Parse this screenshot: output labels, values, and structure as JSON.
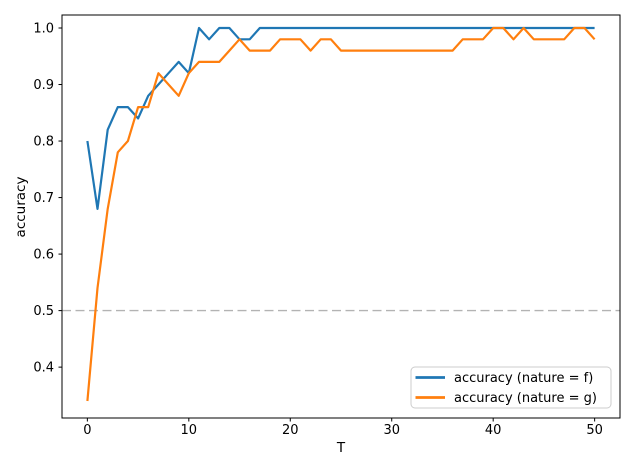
{
  "figure": {
    "background": "#ffffff",
    "spine_color": "#000000",
    "text_color": "#000000"
  },
  "chart_data": {
    "type": "line",
    "title": "",
    "xlabel": "T",
    "ylabel": "accuracy",
    "xlim": [
      -2.5,
      52.5
    ],
    "ylim": [
      0.31,
      1.023
    ],
    "x_ticks": [
      0,
      10,
      20,
      30,
      40,
      50
    ],
    "y_ticks": [
      0.4,
      0.5,
      0.6,
      0.7,
      0.8,
      0.9,
      1.0
    ],
    "grid": false,
    "legend_position": "lower right",
    "x": [
      0,
      1,
      2,
      3,
      4,
      5,
      6,
      7,
      8,
      9,
      10,
      11,
      12,
      13,
      14,
      15,
      16,
      17,
      18,
      19,
      20,
      21,
      22,
      23,
      24,
      25,
      26,
      27,
      28,
      29,
      30,
      31,
      32,
      33,
      34,
      35,
      36,
      37,
      38,
      39,
      40,
      41,
      42,
      43,
      44,
      45,
      46,
      47,
      48,
      49,
      50
    ],
    "series": [
      {
        "name": "accuracy (nature = f)",
        "color": "#1f77b4",
        "values": [
          0.8,
          0.68,
          0.82,
          0.86,
          0.86,
          0.84,
          0.88,
          0.9,
          0.92,
          0.94,
          0.92,
          1.0,
          0.98,
          1.0,
          1.0,
          0.98,
          0.98,
          1.0,
          1.0,
          1.0,
          1.0,
          1.0,
          1.0,
          1.0,
          1.0,
          1.0,
          1.0,
          1.0,
          1.0,
          1.0,
          1.0,
          1.0,
          1.0,
          1.0,
          1.0,
          1.0,
          1.0,
          1.0,
          1.0,
          1.0,
          1.0,
          1.0,
          1.0,
          1.0,
          1.0,
          1.0,
          1.0,
          1.0,
          1.0,
          1.0,
          1.0
        ]
      },
      {
        "name": "accuracy (nature = g)",
        "color": "#ff7f0e",
        "values": [
          0.34,
          0.54,
          0.68,
          0.78,
          0.8,
          0.86,
          0.86,
          0.92,
          0.9,
          0.88,
          0.92,
          0.94,
          0.94,
          0.94,
          0.96,
          0.98,
          0.96,
          0.96,
          0.96,
          0.98,
          0.98,
          0.98,
          0.96,
          0.98,
          0.98,
          0.96,
          0.96,
          0.96,
          0.96,
          0.96,
          0.96,
          0.96,
          0.96,
          0.96,
          0.96,
          0.96,
          0.96,
          0.98,
          0.98,
          0.98,
          1.0,
          1.0,
          0.98,
          1.0,
          0.98,
          0.98,
          0.98,
          0.98,
          1.0,
          1.0,
          0.98
        ]
      }
    ],
    "reference_line": {
      "y": 0.5,
      "style": "dashed",
      "color": "#b3b3b3"
    }
  },
  "legend": {
    "items": [
      {
        "label": "accuracy (nature = f)",
        "color": "#1f77b4"
      },
      {
        "label": "accuracy (nature = g)",
        "color": "#ff7f0e"
      }
    ]
  }
}
